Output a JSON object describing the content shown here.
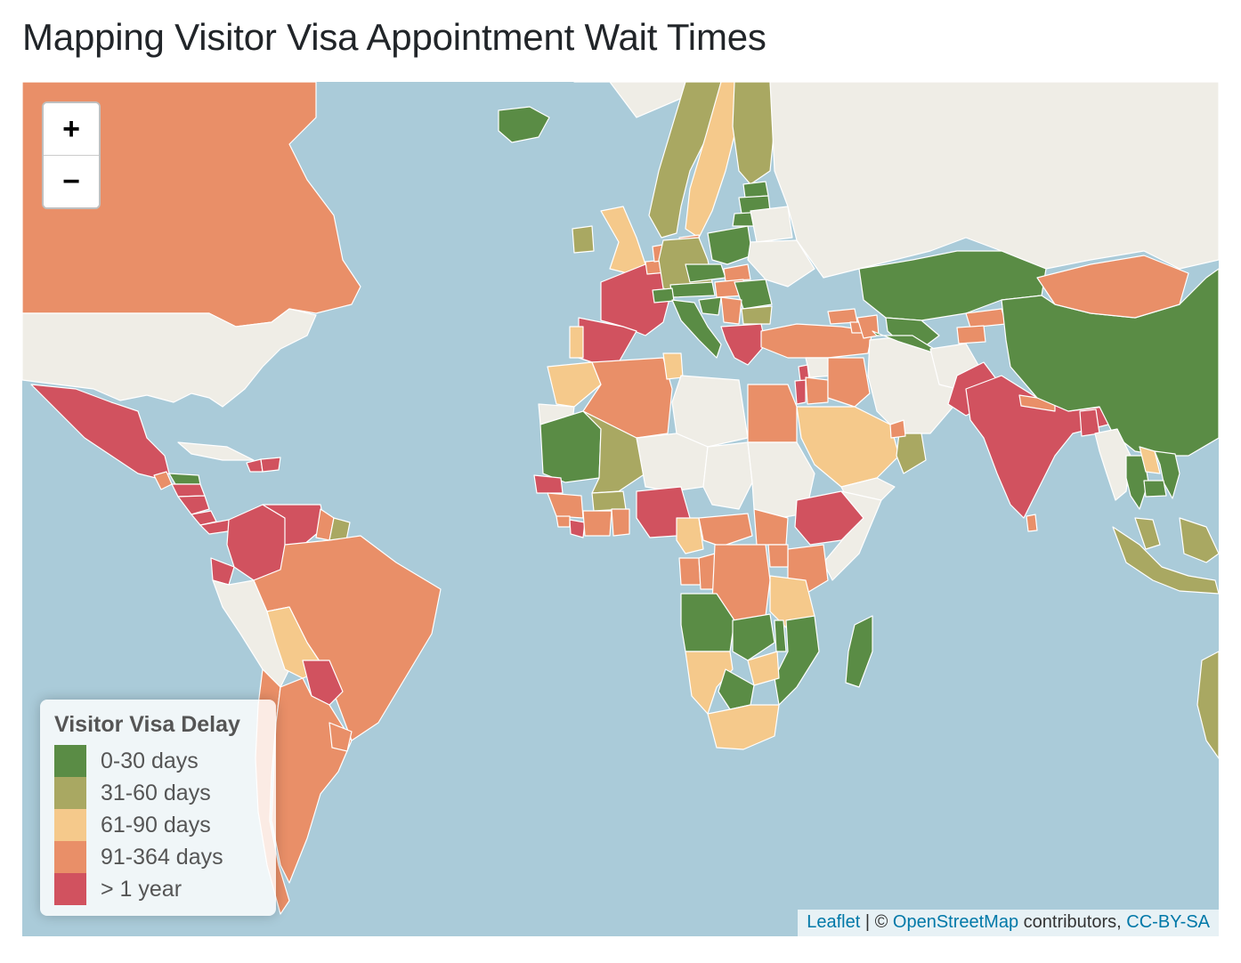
{
  "page": {
    "title": "Mapping Visitor Visa Appointment Wait Times"
  },
  "zoom": {
    "in_label": "+",
    "out_label": "−"
  },
  "legend": {
    "title": "Visitor Visa Delay",
    "items": [
      {
        "label": "0-30 days",
        "color": "#5a8c45"
      },
      {
        "label": "31-60 days",
        "color": "#a9a862"
      },
      {
        "label": "61-90 days",
        "color": "#f5c98b"
      },
      {
        "label": "91-364 days",
        "color": "#e98f68"
      },
      {
        "label": "> 1 year",
        "color": "#d1525f"
      }
    ]
  },
  "attribution": {
    "leaflet": "Leaflet",
    "separator": " | © ",
    "osm": "OpenStreetMap",
    "contributors": " contributors, ",
    "license": "CC-BY-SA"
  },
  "map_colors": {
    "ocean": "#aacbd9",
    "no_data": "#efede6",
    "border": "#ffffff"
  },
  "regions": [
    {
      "name": "Canada",
      "category": "91-364 days"
    },
    {
      "name": "United States",
      "category": "no data"
    },
    {
      "name": "Greenland",
      "category": "no data"
    },
    {
      "name": "Mexico",
      "category": "> 1 year"
    },
    {
      "name": "Guatemala",
      "category": "91-364 days"
    },
    {
      "name": "Belize",
      "category": "0-30 days"
    },
    {
      "name": "Honduras",
      "category": "> 1 year"
    },
    {
      "name": "Nicaragua",
      "category": "> 1 year"
    },
    {
      "name": "Costa Rica",
      "category": "> 1 year"
    },
    {
      "name": "Panama",
      "category": "> 1 year"
    },
    {
      "name": "Cuba",
      "category": "no data"
    },
    {
      "name": "Haiti",
      "category": "> 1 year"
    },
    {
      "name": "Dominican Republic",
      "category": "> 1 year"
    },
    {
      "name": "Colombia",
      "category": "> 1 year"
    },
    {
      "name": "Venezuela",
      "category": "> 1 year"
    },
    {
      "name": "Guyana",
      "category": "91-364 days"
    },
    {
      "name": "Suriname",
      "category": "31-60 days"
    },
    {
      "name": "Ecuador",
      "category": "> 1 year"
    },
    {
      "name": "Peru",
      "category": "no data"
    },
    {
      "name": "Brazil",
      "category": "91-364 days"
    },
    {
      "name": "Bolivia",
      "category": "61-90 days"
    },
    {
      "name": "Paraguay",
      "category": "> 1 year"
    },
    {
      "name": "Chile",
      "category": "91-364 days"
    },
    {
      "name": "Argentina",
      "category": "91-364 days"
    },
    {
      "name": "Uruguay",
      "category": "91-364 days"
    },
    {
      "name": "Iceland",
      "category": "0-30 days"
    },
    {
      "name": "Norway",
      "category": "31-60 days"
    },
    {
      "name": "Sweden",
      "category": "61-90 days"
    },
    {
      "name": "Finland",
      "category": "31-60 days"
    },
    {
      "name": "Denmark",
      "category": "91-364 days"
    },
    {
      "name": "Estonia",
      "category": "0-30 days"
    },
    {
      "name": "Latvia",
      "category": "0-30 days"
    },
    {
      "name": "Lithuania",
      "category": "0-30 days"
    },
    {
      "name": "United Kingdom",
      "category": "61-90 days"
    },
    {
      "name": "Ireland",
      "category": "31-60 days"
    },
    {
      "name": "France",
      "category": "> 1 year"
    },
    {
      "name": "Spain",
      "category": "> 1 year"
    },
    {
      "name": "Portugal",
      "category": "61-90 days"
    },
    {
      "name": "Belgium",
      "category": "91-364 days"
    },
    {
      "name": "Netherlands",
      "category": "91-364 days"
    },
    {
      "name": "Germany",
      "category": "31-60 days"
    },
    {
      "name": "Poland",
      "category": "0-30 days"
    },
    {
      "name": "Czechia",
      "category": "0-30 days"
    },
    {
      "name": "Austria",
      "category": "0-30 days"
    },
    {
      "name": "Switzerland",
      "category": "0-30 days"
    },
    {
      "name": "Italy",
      "category": "0-30 days"
    },
    {
      "name": "Slovakia",
      "category": "91-364 days"
    },
    {
      "name": "Hungary",
      "category": "91-364 days"
    },
    {
      "name": "Romania",
      "category": "0-30 days"
    },
    {
      "name": "Bulgaria",
      "category": "31-60 days"
    },
    {
      "name": "Serbia",
      "category": "91-364 days"
    },
    {
      "name": "Croatia",
      "category": "0-30 days"
    },
    {
      "name": "Greece",
      "category": "> 1 year"
    },
    {
      "name": "Belarus",
      "category": "no data"
    },
    {
      "name": "Ukraine",
      "category": "no data"
    },
    {
      "name": "Russia",
      "category": "no data"
    },
    {
      "name": "Turkey",
      "category": "91-364 days"
    },
    {
      "name": "Georgia",
      "category": "91-364 days"
    },
    {
      "name": "Armenia",
      "category": "91-364 days"
    },
    {
      "name": "Azerbaijan",
      "category": "91-364 days"
    },
    {
      "name": "Syria",
      "category": "no data"
    },
    {
      "name": "Lebanon",
      "category": "> 1 year"
    },
    {
      "name": "Israel",
      "category": "> 1 year"
    },
    {
      "name": "Jordan",
      "category": "91-364 days"
    },
    {
      "name": "Iraq",
      "category": "91-364 days"
    },
    {
      "name": "Iran",
      "category": "no data"
    },
    {
      "name": "Saudi Arabia",
      "category": "61-90 days"
    },
    {
      "name": "Yemen",
      "category": "no data"
    },
    {
      "name": "Oman",
      "category": "31-60 days"
    },
    {
      "name": "UAE",
      "category": "91-364 days"
    },
    {
      "name": "Kazakhstan",
      "category": "0-30 days"
    },
    {
      "name": "Uzbekistan",
      "category": "0-30 days"
    },
    {
      "name": "Turkmenistan",
      "category": "0-30 days"
    },
    {
      "name": "Kyrgyzstan",
      "category": "91-364 days"
    },
    {
      "name": "Tajikistan",
      "category": "91-364 days"
    },
    {
      "name": "Afghanistan",
      "category": "no data"
    },
    {
      "name": "Pakistan",
      "category": "> 1 year"
    },
    {
      "name": "India",
      "category": "> 1 year"
    },
    {
      "name": "Nepal",
      "category": "91-364 days"
    },
    {
      "name": "Bangladesh",
      "category": "> 1 year"
    },
    {
      "name": "Sri Lanka",
      "category": "91-364 days"
    },
    {
      "name": "China",
      "category": "0-30 days"
    },
    {
      "name": "Mongolia",
      "category": "91-364 days"
    },
    {
      "name": "Myanmar",
      "category": "no data"
    },
    {
      "name": "Thailand",
      "category": "0-30 days"
    },
    {
      "name": "Laos",
      "category": "61-90 days"
    },
    {
      "name": "Vietnam",
      "category": "0-30 days"
    },
    {
      "name": "Cambodia",
      "category": "0-30 days"
    },
    {
      "name": "Malaysia",
      "category": "31-60 days"
    },
    {
      "name": "Indonesia",
      "category": "31-60 days"
    },
    {
      "name": "Philippines",
      "category": "31-60 days"
    },
    {
      "name": "Australia",
      "category": "31-60 days"
    },
    {
      "name": "Morocco",
      "category": "61-90 days"
    },
    {
      "name": "Western Sahara",
      "category": "no data"
    },
    {
      "name": "Algeria",
      "category": "91-364 days"
    },
    {
      "name": "Tunisia",
      "category": "61-90 days"
    },
    {
      "name": "Libya",
      "category": "no data"
    },
    {
      "name": "Egypt",
      "category": "91-364 days"
    },
    {
      "name": "Mauritania",
      "category": "0-30 days"
    },
    {
      "name": "Mali",
      "category": "31-60 days"
    },
    {
      "name": "Niger",
      "category": "no data"
    },
    {
      "name": "Chad",
      "category": "no data"
    },
    {
      "name": "Sudan",
      "category": "no data"
    },
    {
      "name": "Senegal",
      "category": "> 1 year"
    },
    {
      "name": "Guinea",
      "category": "91-364 days"
    },
    {
      "name": "Sierra Leone",
      "category": "91-364 days"
    },
    {
      "name": "Liberia",
      "category": "> 1 year"
    },
    {
      "name": "Burkina Faso",
      "category": "31-60 days"
    },
    {
      "name": "Cote d'Ivoire",
      "category": "91-364 days"
    },
    {
      "name": "Ghana",
      "category": "91-364 days"
    },
    {
      "name": "Nigeria",
      "category": "> 1 year"
    },
    {
      "name": "Cameroon",
      "category": "61-90 days"
    },
    {
      "name": "Central African Republic",
      "category": "91-364 days"
    },
    {
      "name": "South Sudan",
      "category": "91-364 days"
    },
    {
      "name": "Ethiopia",
      "category": "> 1 year"
    },
    {
      "name": "Somalia",
      "category": "no data"
    },
    {
      "name": "Kenya",
      "category": "91-364 days"
    },
    {
      "name": "Uganda",
      "category": "91-364 days"
    },
    {
      "name": "Gabon",
      "category": "91-364 days"
    },
    {
      "name": "Republic of the Congo",
      "category": "91-364 days"
    },
    {
      "name": "DR Congo",
      "category": "91-364 days"
    },
    {
      "name": "Tanzania",
      "category": "61-90 days"
    },
    {
      "name": "Angola",
      "category": "0-30 days"
    },
    {
      "name": "Zambia",
      "category": "0-30 days"
    },
    {
      "name": "Malawi",
      "category": "0-30 days"
    },
    {
      "name": "Mozambique",
      "category": "0-30 days"
    },
    {
      "name": "Zimbabwe",
      "category": "61-90 days"
    },
    {
      "name": "Namibia",
      "category": "61-90 days"
    },
    {
      "name": "Botswana",
      "category": "0-30 days"
    },
    {
      "name": "South Africa",
      "category": "61-90 days"
    },
    {
      "name": "Madagascar",
      "category": "0-30 days"
    }
  ]
}
